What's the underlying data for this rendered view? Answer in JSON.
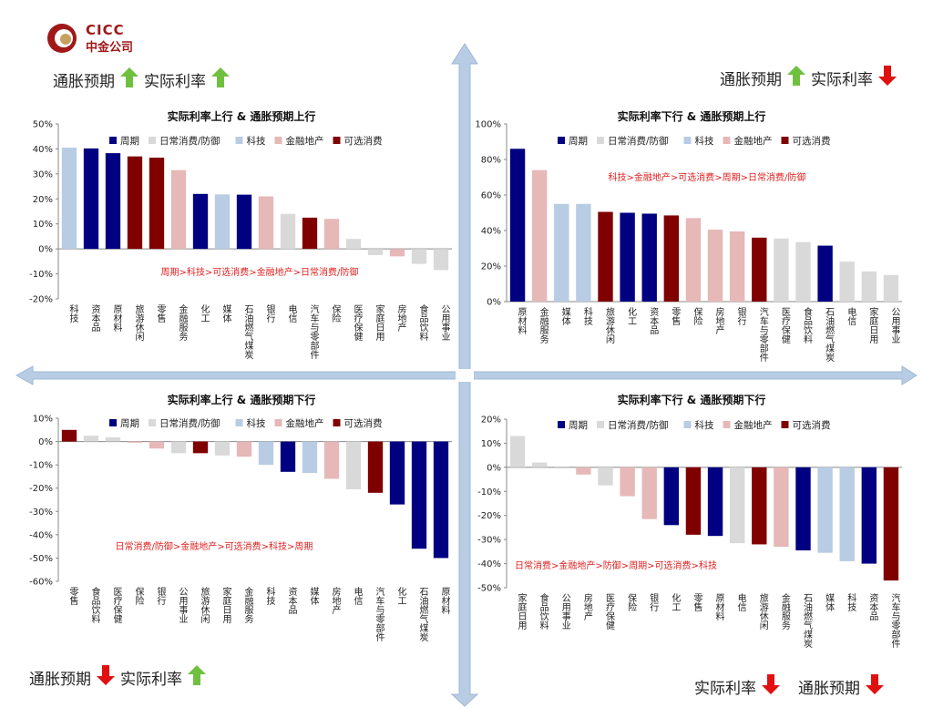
{
  "logo": {
    "name": "CICC",
    "subname": "中金公司"
  },
  "colors": {
    "zhouqi": "#000080",
    "richang": "#d9d9d9",
    "keji": "#b8cce4",
    "jinrong": "#e6b8b7",
    "kexuan": "#800000",
    "up": "#70c040",
    "down": "#e01010",
    "cross": "#b8cce4"
  },
  "quadrant_labels": {
    "tl": {
      "first": "通胀预期",
      "first_dir": "up",
      "second": "实际利率",
      "second_dir": "up"
    },
    "tr": {
      "first": "通胀预期",
      "first_dir": "up",
      "second": "实际利率",
      "second_dir": "down"
    },
    "bl": {
      "first": "通胀预期",
      "first_dir": "down",
      "second": "实际利率",
      "second_dir": "up"
    },
    "br": {
      "first": "实际利率",
      "first_dir": "down",
      "second": "通胀预期",
      "second_dir": "down"
    }
  },
  "legend": [
    {
      "key": "zhouqi",
      "label": "周期"
    },
    {
      "key": "richang",
      "label": "日常消费/防御"
    },
    {
      "key": "keji",
      "label": "科技"
    },
    {
      "key": "jinrong",
      "label": "金融地产"
    },
    {
      "key": "kexuan",
      "label": "可选消费"
    }
  ],
  "chart_data": [
    {
      "type": "bar",
      "title": "实际利率上行 & 通胀预期上行",
      "annotation": "周期>科技>可选消费>金融地产>日常消费/防御",
      "ylim": [
        -20,
        50
      ],
      "yticks": [
        -20,
        -10,
        0,
        10,
        20,
        30,
        40,
        50
      ],
      "unit": "%",
      "categories": [
        "科技",
        "资本品",
        "原材料",
        "旅游休闲",
        "零售",
        "金融服务",
        "化工",
        "媒体",
        "石油燃气煤炭",
        "银行",
        "电信",
        "汽车与零部件",
        "保险",
        "医疗保健",
        "家庭日用",
        "房地产",
        "食品饮料",
        "公用事业"
      ],
      "groups": [
        "keji",
        "zhouqi",
        "zhouqi",
        "kexuan",
        "kexuan",
        "jinrong",
        "zhouqi",
        "keji",
        "zhouqi",
        "jinrong",
        "richang",
        "kexuan",
        "jinrong",
        "richang",
        "richang",
        "jinrong",
        "richang",
        "richang"
      ],
      "values": [
        40.5,
        40.2,
        38.3,
        37.0,
        36.5,
        31.5,
        22.0,
        21.8,
        21.7,
        21.0,
        14.0,
        12.5,
        12.0,
        4.0,
        -2.5,
        -3.0,
        -6.0,
        -8.5
      ]
    },
    {
      "type": "bar",
      "title": "实际利率下行 & 通胀预期上行",
      "annotation": "科技>金融地产>可选消费>周期>日常消费/防御",
      "ylim": [
        0,
        100
      ],
      "yticks": [
        0,
        20,
        40,
        60,
        80,
        100
      ],
      "unit": "%",
      "categories": [
        "原材料",
        "金融服务",
        "媒体",
        "科技",
        "旅游休闲",
        "化工",
        "资本品",
        "零售",
        "保险",
        "房地产",
        "银行",
        "汽车与零部件",
        "医疗保健",
        "食品饮料",
        "石油燃气煤炭",
        "电信",
        "家庭日用",
        "公用事业"
      ],
      "groups": [
        "zhouqi",
        "jinrong",
        "keji",
        "keji",
        "kexuan",
        "zhouqi",
        "zhouqi",
        "kexuan",
        "jinrong",
        "jinrong",
        "jinrong",
        "kexuan",
        "richang",
        "richang",
        "zhouqi",
        "richang",
        "richang",
        "richang"
      ],
      "values": [
        86,
        74,
        55,
        55,
        50.5,
        50,
        49.5,
        48.5,
        47,
        40.5,
        39.5,
        36,
        35.5,
        33.5,
        31.5,
        22.5,
        17,
        15
      ]
    },
    {
      "type": "bar",
      "title": "实际利率上行 & 通胀预期下行",
      "annotation": "日常消费/防御>金融地产>可选消费>科技>周期",
      "ylim": [
        -60,
        10
      ],
      "yticks": [
        -60,
        -50,
        -40,
        -30,
        -20,
        -10,
        0,
        10
      ],
      "unit": "%",
      "categories": [
        "零售",
        "食品饮料",
        "医疗保健",
        "保险",
        "银行",
        "公用事业",
        "旅游休闲",
        "家庭日用",
        "金融服务",
        "科技",
        "资本品",
        "媒体",
        "房地产",
        "电信",
        "汽车与零部件",
        "化工",
        "石油燃气煤炭",
        "原材料"
      ],
      "groups": [
        "kexuan",
        "richang",
        "richang",
        "jinrong",
        "jinrong",
        "richang",
        "kexuan",
        "richang",
        "jinrong",
        "keji",
        "zhouqi",
        "keji",
        "jinrong",
        "richang",
        "kexuan",
        "zhouqi",
        "zhouqi",
        "zhouqi"
      ],
      "values": [
        5,
        2.5,
        1.8,
        -0.5,
        -3,
        -5,
        -5,
        -6,
        -6.5,
        -10,
        -13,
        -13.5,
        -16,
        -20.5,
        -22,
        -27,
        -46,
        -50
      ]
    },
    {
      "type": "bar",
      "title": "实际利率下行 & 通胀预期下行",
      "annotation": "日常消费>金融地产>防御>周期>可选消费>科技",
      "ylim": [
        -50,
        20
      ],
      "yticks": [
        -50,
        -40,
        -30,
        -20,
        -10,
        0,
        10,
        20
      ],
      "unit": "%",
      "categories": [
        "家庭日用",
        "食品饮料",
        "公用事业",
        "房地产",
        "医疗保健",
        "保险",
        "银行",
        "化工",
        "零售",
        "原材料",
        "电信",
        "旅游休闲",
        "金融服务",
        "石油燃气煤炭",
        "媒体",
        "科技",
        "资本品",
        "汽车与零部件"
      ],
      "groups": [
        "richang",
        "richang",
        "richang",
        "jinrong",
        "richang",
        "jinrong",
        "jinrong",
        "zhouqi",
        "kexuan",
        "zhouqi",
        "richang",
        "kexuan",
        "jinrong",
        "zhouqi",
        "keji",
        "keji",
        "zhouqi",
        "kexuan"
      ],
      "values": [
        13,
        2,
        -0.5,
        -3,
        -7.5,
        -12,
        -21.5,
        -24,
        -28,
        -28.5,
        -31.5,
        -32,
        -33,
        -34.5,
        -35.5,
        -39,
        -40,
        -47
      ]
    }
  ]
}
